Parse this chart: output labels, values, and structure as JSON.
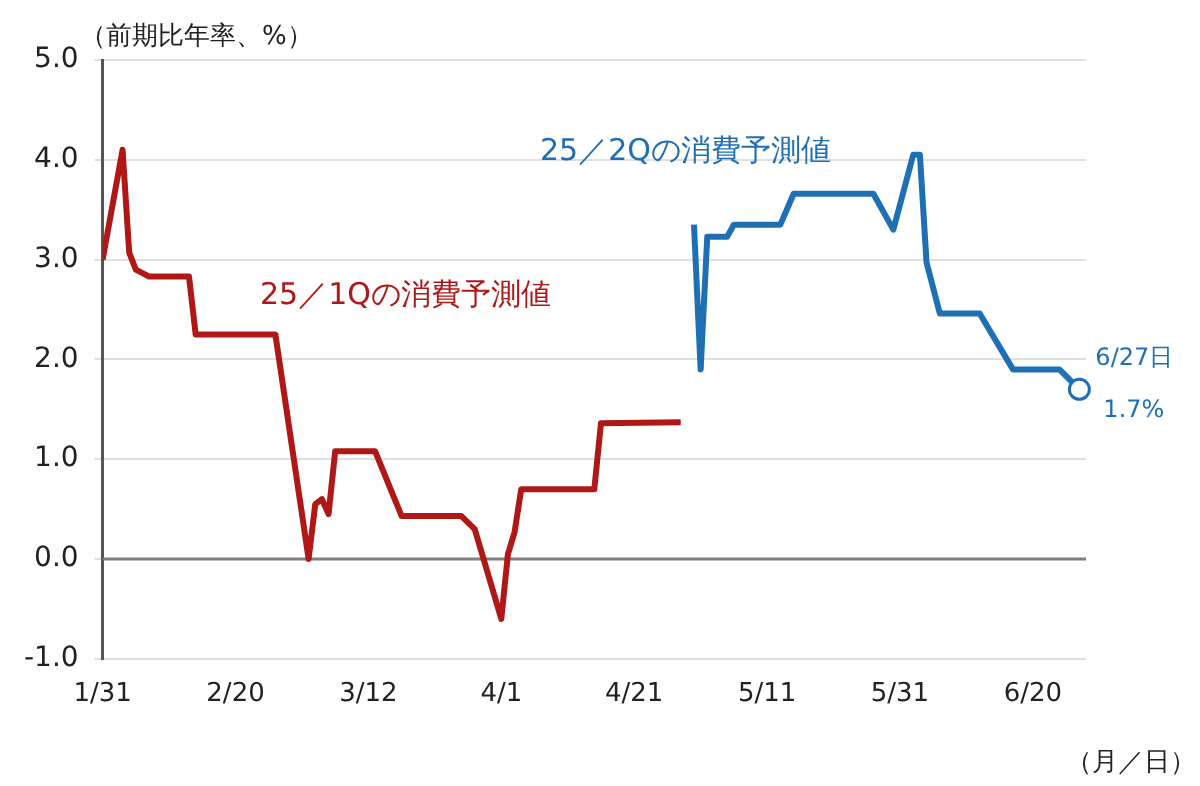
{
  "chart_data": {
    "type": "line",
    "ylabel": "（前期比年率、%）",
    "xlabel": "（月／日）",
    "xlim": [
      "--01-31",
      "--06-28"
    ],
    "xticks": [
      {
        "value": "--01-31",
        "label": "1/31"
      },
      {
        "value": "--02-20",
        "label": "2/20"
      },
      {
        "value": "--03-12",
        "label": "3/12"
      },
      {
        "value": "--04-01",
        "label": "4/1"
      },
      {
        "value": "--04-21",
        "label": "4/21"
      },
      {
        "value": "--05-11",
        "label": "5/11"
      },
      {
        "value": "--05-31",
        "label": "5/31"
      },
      {
        "value": "--06-20",
        "label": "6/20"
      }
    ],
    "ylim": [
      -1,
      5
    ],
    "yticks": [
      {
        "value": -1,
        "label": "-1.0"
      },
      {
        "value": 0,
        "label": "0.0"
      },
      {
        "value": 1,
        "label": "1.0"
      },
      {
        "value": 2,
        "label": "2.0"
      },
      {
        "value": 3,
        "label": "3.0"
      },
      {
        "value": 4,
        "label": "4.0"
      },
      {
        "value": 5,
        "label": "5.0"
      }
    ],
    "grid": "y",
    "ref_lines": [
      {
        "axis": "y",
        "value": 0,
        "color": "#808080"
      }
    ],
    "series": [
      {
        "name": "25／1Qの消費予測値",
        "color": "#b01818",
        "x": [
          "--01-31",
          "--02-03",
          "--02-04",
          "--02-05",
          "--02-07",
          "--02-13",
          "--02-14",
          "--02-26",
          "--03-03",
          "--03-04",
          "--03-05",
          "--03-06",
          "--03-07",
          "--03-13",
          "--03-17",
          "--03-26",
          "--03-28",
          "--04-01",
          "--04-02",
          "--04-03",
          "--04-04",
          "--04-15",
          "--04-16",
          "--04-28"
        ],
        "values": [
          3.0,
          4.1,
          3.07,
          2.9,
          2.83,
          2.83,
          2.25,
          2.25,
          0.0,
          0.55,
          0.6,
          0.45,
          1.08,
          1.08,
          0.43,
          0.43,
          0.3,
          -0.6,
          0.05,
          0.27,
          0.7,
          0.7,
          1.36,
          1.37
        ]
      },
      {
        "name": "25／2Qの消費予測値",
        "color": "#1f6fb5",
        "x": [
          "--04-30",
          "--05-01",
          "--05-02",
          "--05-05",
          "--05-06",
          "--05-13",
          "--05-15",
          "--05-27",
          "--05-30",
          "--06-02",
          "--06-03",
          "--06-04",
          "--06-06",
          "--06-12",
          "--06-17",
          "--06-24",
          "--06-27"
        ],
        "values": [
          3.35,
          1.9,
          3.23,
          3.23,
          3.35,
          3.35,
          3.66,
          3.66,
          3.3,
          4.05,
          4.05,
          2.97,
          2.46,
          2.46,
          1.9,
          1.9,
          1.7
        ]
      }
    ],
    "annotations": [
      {
        "text": "6/27日\n1.7%",
        "x": "--06-27",
        "y": 1.7
      }
    ]
  }
}
